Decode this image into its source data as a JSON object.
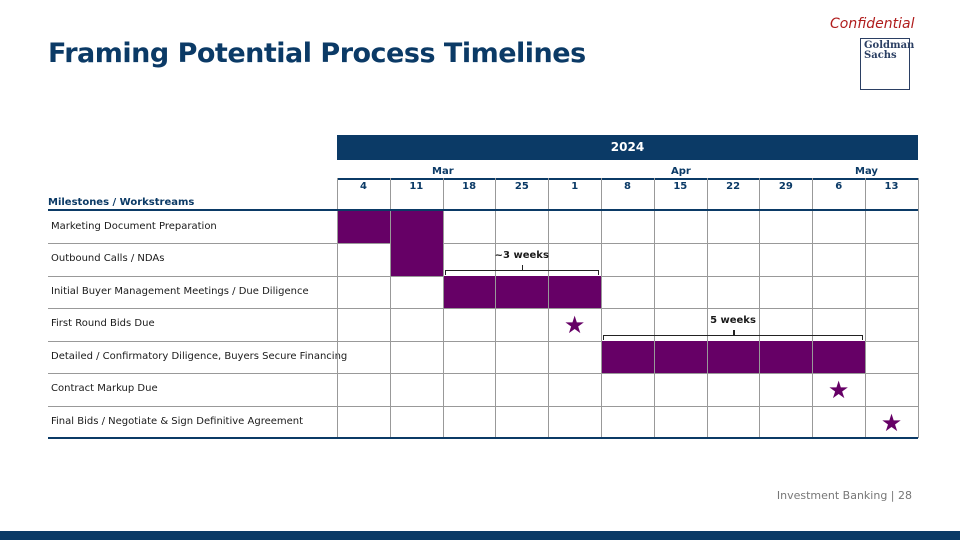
{
  "header": {
    "title": "Framing Potential Process Timelines",
    "confidential": "Confidential",
    "logo": [
      "Goldman",
      "Sachs"
    ]
  },
  "timeline": {
    "year": "2024",
    "months": [
      "Mar",
      "Apr",
      "May"
    ],
    "weeks": [
      "4",
      "11",
      "18",
      "25",
      "1",
      "8",
      "15",
      "22",
      "29",
      "6",
      "13"
    ],
    "column_header": "Milestones / Workstreams",
    "rows": [
      {
        "label": "Marketing Document Preparation",
        "bar_weeks": [
          0,
          1
        ]
      },
      {
        "label": "Outbound Calls / NDAs",
        "bar_weeks": [
          1
        ]
      },
      {
        "label": "Initial Buyer Management Meetings / Due Diligence",
        "bar_weeks": [
          2,
          3,
          4
        ]
      },
      {
        "label": "First Round Bids Due",
        "milestone_week": 4
      },
      {
        "label": "Detailed / Confirmatory Diligence, Buyers Secure Financing",
        "bar_weeks": [
          5,
          6,
          7,
          8,
          9
        ]
      },
      {
        "label": "Contract Markup Due",
        "milestone_week": 9
      },
      {
        "label": "Final Bids / Negotiate & Sign Definitive Agreement",
        "milestone_week": 10
      }
    ],
    "annotations": [
      {
        "label": "~3 weeks",
        "from_week": 2,
        "to_week": 4,
        "row": 1
      },
      {
        "label": "5 weeks",
        "from_week": 5,
        "to_week": 9,
        "row": 3
      }
    ],
    "colors": {
      "bar": "#660066",
      "header": "#0b3a66"
    }
  },
  "footer": {
    "text": "Investment Banking | 28"
  }
}
